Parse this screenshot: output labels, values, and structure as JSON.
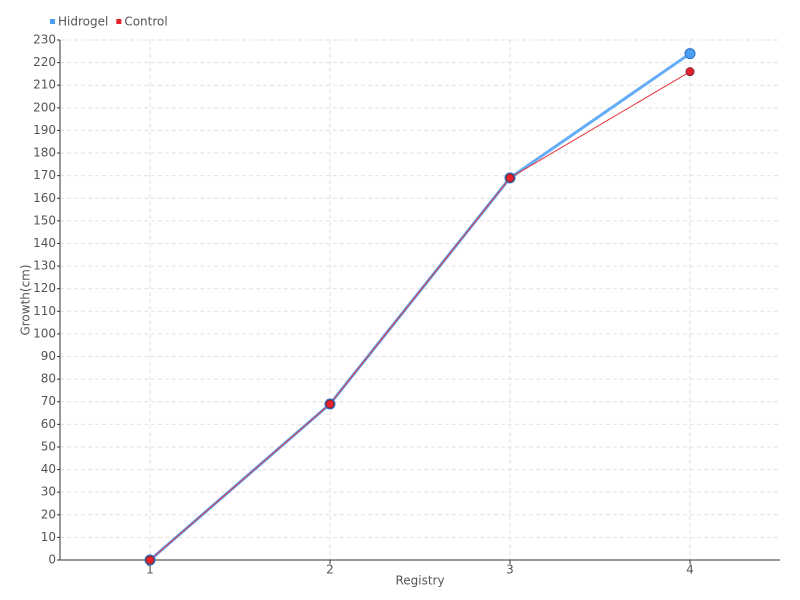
{
  "chart_data": {
    "type": "line",
    "categories": [
      "1",
      "2",
      "3",
      "4"
    ],
    "series": [
      {
        "name": "Hidrogel",
        "color": "#4a9ff5",
        "values": [
          0,
          69,
          169,
          224
        ]
      },
      {
        "name": "Control",
        "color": "#e8202a",
        "values": [
          0,
          69,
          169,
          216
        ]
      }
    ],
    "x_label": "Registry",
    "y_label": "Growth(cm)",
    "ylim": [
      0,
      230
    ],
    "yticks": [
      0,
      10,
      20,
      30,
      40,
      50,
      60,
      70,
      80,
      90,
      100,
      110,
      120,
      130,
      140,
      150,
      160,
      170,
      180,
      190,
      200,
      210,
      220,
      230
    ],
    "grid": true,
    "legend": "top-left"
  }
}
